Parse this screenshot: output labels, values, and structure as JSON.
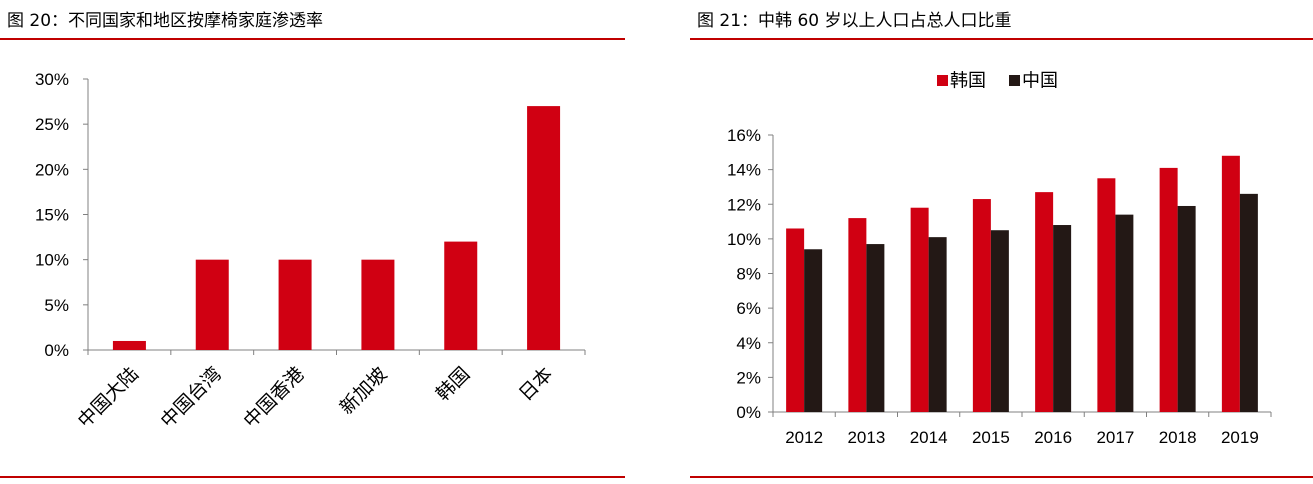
{
  "left": {
    "title": "图 20：不同国家和地区按摩椅家庭渗透率"
  },
  "right": {
    "title": "图 21：中韩 60 岁以上人口占总人口比重"
  },
  "chart_data": [
    {
      "type": "bar",
      "title": "图 20：不同国家和地区按摩椅家庭渗透率",
      "categories": [
        "中国大陆",
        "中国台湾",
        "中国香港",
        "新加坡",
        "韩国",
        "日本"
      ],
      "values": [
        1,
        10,
        10,
        10,
        12,
        27
      ],
      "ylim": [
        0,
        30
      ],
      "yticks": [
        "0%",
        "5%",
        "10%",
        "15%",
        "20%",
        "25%",
        "30%"
      ],
      "ytick_values": [
        0,
        5,
        10,
        15,
        20,
        25,
        30
      ],
      "unit": "%",
      "grid": false,
      "colors": [
        "#d00012"
      ]
    },
    {
      "type": "bar",
      "title": "图 21：中韩 60 岁以上人口占总人口比重",
      "categories": [
        "2012",
        "2013",
        "2014",
        "2015",
        "2016",
        "2017",
        "2018",
        "2019"
      ],
      "series": [
        {
          "name": "韩国",
          "values": [
            10.6,
            11.2,
            11.8,
            12.3,
            12.7,
            13.5,
            14.1,
            14.8
          ]
        },
        {
          "name": "中国",
          "values": [
            9.4,
            9.7,
            10.1,
            10.5,
            10.8,
            11.4,
            11.9,
            12.6
          ]
        }
      ],
      "ylim": [
        0,
        16
      ],
      "yticks": [
        "0%",
        "2%",
        "4%",
        "6%",
        "8%",
        "10%",
        "12%",
        "14%",
        "16%"
      ],
      "ytick_values": [
        0,
        2,
        4,
        6,
        8,
        10,
        12,
        14,
        16
      ],
      "unit": "%",
      "legend": "top-center",
      "grid": false,
      "colors": [
        "#d00012",
        "#231815"
      ]
    }
  ]
}
